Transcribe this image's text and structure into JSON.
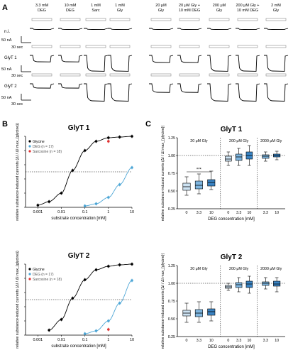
{
  "panel_a": {
    "letter": "A",
    "column_labels": [
      [
        "3.3 mM",
        "DEG"
      ],
      [
        "10 mM",
        "DEG"
      ],
      [
        "1 mM",
        "Sarc"
      ],
      [
        "1 mM",
        "Gly"
      ],
      [
        "20 μM",
        "Gly"
      ],
      [
        "20 μM Gly +",
        "10 mM DEG"
      ],
      [
        "200 μM",
        "Gly"
      ],
      [
        "200 μM Gly +",
        "10 mM DEG"
      ],
      [
        "2 mM",
        "Gly"
      ]
    ],
    "row_labels": [
      "n.i.",
      "GlyT 1",
      "GlyT 2"
    ],
    "row_scales": [
      "50 nA",
      "50 nA",
      "50 nA"
    ],
    "time_scales": [
      "30 sec",
      "30 sec",
      "30 sec"
    ]
  },
  "panel_b": {
    "letter": "B",
    "subplot_titles": [
      "GlyT 1",
      "GlyT 2"
    ]
  },
  "panel_c": {
    "letter": "C",
    "subplot_titles": [
      "GlyT 1",
      "GlyT 2"
    ]
  },
  "chart_data": [
    {
      "type": "line",
      "title": "GlyT 1",
      "xlabel": "substrate concentration [mM]",
      "ylabel": "relative substance-induced currents (ΔI / ΔI max_{glycine})",
      "x_scale": "log",
      "xlim": [
        0.0003,
        10
      ],
      "ylim": [
        0,
        1
      ],
      "xticks": [
        "0.001",
        "0.01",
        "0.1",
        "1",
        "10"
      ],
      "yticks": [
        "0",
        "0.2",
        "0.4",
        "0.6",
        "0.8",
        "1"
      ],
      "reference_line_y": 0.5,
      "legend_placement": "top-left",
      "series": [
        {
          "name": "Glycine",
          "color": "#000000",
          "x": [
            0.001,
            0.003,
            0.01,
            0.03,
            0.1,
            0.3,
            1,
            3,
            10
          ],
          "y": [
            0.03,
            0.08,
            0.2,
            0.52,
            0.8,
            0.93,
            0.98,
            0.99,
            1.0
          ]
        },
        {
          "name": "DEG (n = 17)",
          "color": "#4da6d6",
          "x": [
            0.1,
            0.3,
            1,
            3,
            10
          ],
          "y": [
            0.02,
            0.05,
            0.14,
            0.32,
            0.56
          ]
        },
        {
          "name": "Sarcosine (n = 18)",
          "color": "#e03030",
          "x": [
            1
          ],
          "y": [
            0.93
          ]
        }
      ]
    },
    {
      "type": "line",
      "title": "GlyT 2",
      "xlabel": "substrate concentration [mM]",
      "ylabel": "relative substance-induced currents (ΔI / ΔI max_{glycine})",
      "x_scale": "log",
      "xlim": [
        0.0003,
        10
      ],
      "ylim": [
        0,
        1
      ],
      "xticks": [
        "0.001",
        "0.01",
        "0.1",
        "1",
        "10"
      ],
      "yticks": [
        "0",
        "0.2",
        "0.4",
        "0.6",
        "0.8",
        "1"
      ],
      "reference_line_y": 0.5,
      "legend_placement": "top-left",
      "series": [
        {
          "name": "Glycine",
          "color": "#000000",
          "x": [
            0.003,
            0.01,
            0.03,
            0.1,
            0.3,
            1,
            3,
            10
          ],
          "y": [
            0.07,
            0.22,
            0.52,
            0.78,
            0.92,
            0.97,
            0.99,
            1.0
          ]
        },
        {
          "name": "DEG (n = 17)",
          "color": "#4da6d6",
          "x": [
            0.1,
            0.3,
            1,
            3,
            10
          ],
          "y": [
            0.02,
            0.06,
            0.2,
            0.45,
            0.77
          ]
        },
        {
          "name": "Sarcosine (n = 18)",
          "color": "#e03030",
          "x": [
            1
          ],
          "y": [
            0.08
          ]
        }
      ]
    },
    {
      "type": "box",
      "title": "GlyT 1",
      "xlabel": "DEG concentration [mM]",
      "ylabel": "relative substance-induced currents (ΔI / ΔI max_{glycine})",
      "ylim": [
        0.25,
        1.25
      ],
      "yticks": [
        "0.25",
        "0.50",
        "0.75",
        "1.00",
        "1.25"
      ],
      "reference_line_y": 1.0,
      "significance": "***",
      "groups": [
        {
          "label": "20 μM Gly",
          "categories": [
            "0",
            "3.3",
            "10"
          ],
          "boxes": [
            {
              "whisker_low": 0.44,
              "q1": 0.51,
              "median": 0.56,
              "q3": 0.61,
              "whisker_high": 0.7
            },
            {
              "whisker_low": 0.46,
              "q1": 0.53,
              "median": 0.58,
              "q3": 0.64,
              "whisker_high": 0.74
            },
            {
              "whisker_low": 0.52,
              "q1": 0.57,
              "median": 0.62,
              "q3": 0.66,
              "whisker_high": 0.78
            }
          ]
        },
        {
          "label": "200 μM Gly",
          "categories": [
            "0",
            "3.3",
            "10"
          ],
          "boxes": [
            {
              "whisker_low": 0.86,
              "q1": 0.92,
              "median": 0.95,
              "q3": 0.99,
              "whisker_high": 1.05
            },
            {
              "whisker_low": 0.86,
              "q1": 0.93,
              "median": 0.98,
              "q3": 1.02,
              "whisker_high": 1.1
            },
            {
              "whisker_low": 0.86,
              "q1": 0.95,
              "median": 1.0,
              "q3": 1.05,
              "whisker_high": 1.14
            }
          ]
        },
        {
          "label": "2000 μM Gly",
          "categories": [
            "3.3",
            "10"
          ],
          "boxes": [
            {
              "whisker_low": 0.92,
              "q1": 0.96,
              "median": 0.99,
              "q3": 1.01,
              "whisker_high": 1.05
            },
            {
              "whisker_low": 0.94,
              "q1": 0.98,
              "median": 1.0,
              "q3": 1.02,
              "whisker_high": 1.06
            }
          ]
        }
      ]
    },
    {
      "type": "box",
      "title": "GlyT 2",
      "xlabel": "DEG concentration [mM]",
      "ylabel": "relative substance-induced currents (ΔI / ΔI max_{glycine})",
      "ylim": [
        0.25,
        1.25
      ],
      "yticks": [
        "0.25",
        "0.50",
        "0.75",
        "1.00",
        "1.25"
      ],
      "reference_line_y": 1.0,
      "groups": [
        {
          "label": "20 μM Gly",
          "categories": [
            "0",
            "3.3",
            "10"
          ],
          "boxes": [
            {
              "whisker_low": 0.45,
              "q1": 0.54,
              "median": 0.58,
              "q3": 0.62,
              "whisker_high": 0.72
            },
            {
              "whisker_low": 0.45,
              "q1": 0.53,
              "median": 0.58,
              "q3": 0.63,
              "whisker_high": 0.74
            },
            {
              "whisker_low": 0.47,
              "q1": 0.55,
              "median": 0.6,
              "q3": 0.64,
              "whisker_high": 0.74
            }
          ]
        },
        {
          "label": "200 μM Gly",
          "categories": [
            "0",
            "3.3",
            "10"
          ],
          "boxes": [
            {
              "whisker_low": 0.9,
              "q1": 0.93,
              "median": 0.95,
              "q3": 0.97,
              "whisker_high": 1.0
            },
            {
              "whisker_low": 0.88,
              "q1": 0.94,
              "median": 0.98,
              "q3": 1.01,
              "whisker_high": 1.08
            },
            {
              "whisker_low": 0.86,
              "q1": 0.94,
              "median": 0.99,
              "q3": 1.03,
              "whisker_high": 1.1
            }
          ]
        },
        {
          "label": "2000 μM Gly",
          "categories": [
            "3.3",
            "10"
          ],
          "boxes": [
            {
              "whisker_low": 0.92,
              "q1": 0.97,
              "median": 1.0,
              "q3": 1.02,
              "whisker_high": 1.08
            },
            {
              "whisker_low": 0.88,
              "q1": 0.96,
              "median": 0.99,
              "q3": 1.03,
              "whisker_high": 1.08
            }
          ]
        }
      ]
    }
  ]
}
